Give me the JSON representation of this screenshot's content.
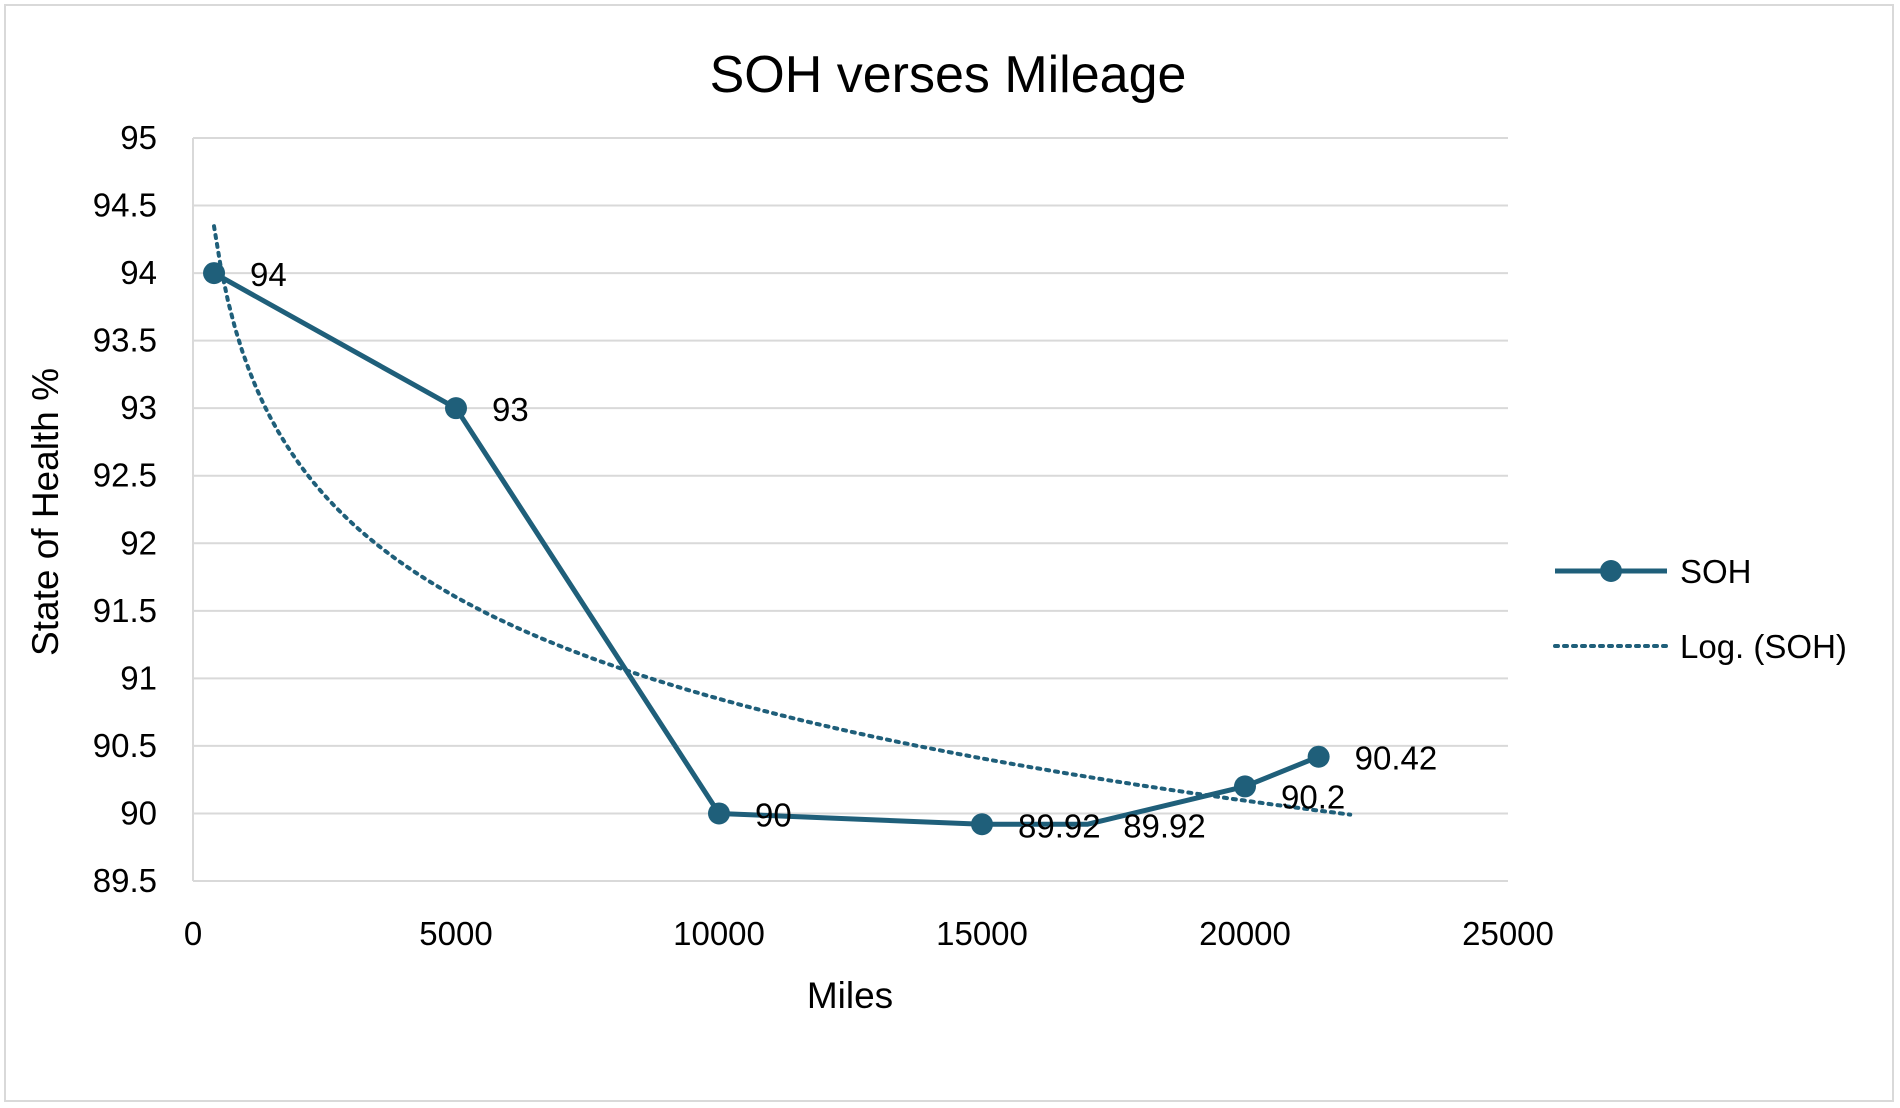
{
  "chart_data": {
    "type": "line",
    "title": "SOH verses Mileage",
    "xlabel": "Miles",
    "ylabel": "State of Health %",
    "xlim": [
      0,
      25000
    ],
    "ylim": [
      89.5,
      95
    ],
    "x_ticks": [
      "0",
      "5000",
      "10000",
      "15000",
      "20000",
      "25000"
    ],
    "y_ticks": [
      "95",
      "94.5",
      "94",
      "93.5",
      "93",
      "92.5",
      "92",
      "91.5",
      "91",
      "90.5",
      "90",
      "89.5"
    ],
    "grid": true,
    "legend_position": "right",
    "series": [
      {
        "name": "SOH",
        "color": "#1f5f7a",
        "marker": "circle",
        "points": [
          {
            "x": 400,
            "y": 94,
            "label": "94"
          },
          {
            "x": 5000,
            "y": 93,
            "label": "93"
          },
          {
            "x": 10000,
            "y": 90,
            "label": "90"
          },
          {
            "x": 15000,
            "y": 89.92,
            "label": "89.92"
          },
          {
            "x": 17000,
            "y": 89.92,
            "label": "89.92"
          },
          {
            "x": 20000,
            "y": 90.2,
            "label": "90.2"
          },
          {
            "x": 21400,
            "y": 90.42,
            "label": "90.42"
          }
        ]
      },
      {
        "name": "Log. (SOH)",
        "color": "#1f5f7a",
        "style": "dotted",
        "trendline": "logarithmic",
        "x_range": [
          400,
          22000
        ],
        "coef_a": -1.087,
        "coef_b": 100.86
      }
    ]
  }
}
